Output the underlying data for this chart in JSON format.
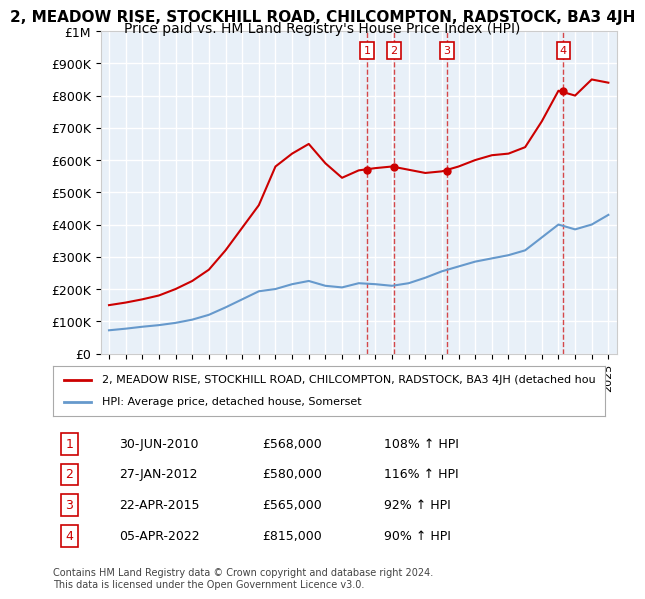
{
  "title": "2, MEADOW RISE, STOCKHILL ROAD, CHILCOMPTON, RADSTOCK, BA3 4JH",
  "subtitle": "Price paid vs. HM Land Registry's House Price Index (HPI)",
  "background_color": "#ffffff",
  "plot_bg_color": "#e8f0f8",
  "grid_color": "#ffffff",
  "ylim": [
    0,
    1000000
  ],
  "yticks": [
    0,
    100000,
    200000,
    300000,
    400000,
    500000,
    600000,
    700000,
    800000,
    900000,
    1000000
  ],
  "ytick_labels": [
    "£0",
    "£100K",
    "£200K",
    "£300K",
    "£400K",
    "£500K",
    "£600K",
    "£700K",
    "£800K",
    "£900K",
    "£1M"
  ],
  "hpi_years": [
    1995,
    1996,
    1997,
    1998,
    1999,
    2000,
    2001,
    2002,
    2003,
    2004,
    2005,
    2006,
    2007,
    2008,
    2009,
    2010,
    2011,
    2012,
    2013,
    2014,
    2015,
    2016,
    2017,
    2018,
    2019,
    2020,
    2021,
    2022,
    2023,
    2024,
    2025
  ],
  "hpi_values": [
    72000,
    77000,
    83000,
    88000,
    95000,
    105000,
    120000,
    143000,
    168000,
    193000,
    200000,
    215000,
    225000,
    210000,
    205000,
    218000,
    215000,
    210000,
    218000,
    235000,
    255000,
    270000,
    285000,
    295000,
    305000,
    320000,
    360000,
    400000,
    385000,
    400000,
    430000
  ],
  "prop_years": [
    1995,
    1996,
    1997,
    1998,
    1999,
    2000,
    2001,
    2002,
    2003,
    2004,
    2005,
    2006,
    2007,
    2008,
    2009,
    2010,
    2011,
    2012,
    2013,
    2014,
    2015,
    2016,
    2017,
    2018,
    2019,
    2020,
    2021,
    2022,
    2023,
    2024,
    2025
  ],
  "prop_values": [
    150000,
    158000,
    168000,
    180000,
    200000,
    225000,
    260000,
    320000,
    390000,
    460000,
    580000,
    620000,
    650000,
    590000,
    545000,
    568000,
    575000,
    580000,
    570000,
    560000,
    565000,
    580000,
    600000,
    615000,
    620000,
    640000,
    720000,
    815000,
    800000,
    850000,
    840000
  ],
  "sale_points": [
    {
      "num": 1,
      "year": 2010.5,
      "price": 568000,
      "date": "30-JUN-2010",
      "pct": "108%",
      "dir": "↑"
    },
    {
      "num": 2,
      "year": 2012.1,
      "price": 580000,
      "date": "27-JAN-2012",
      "pct": "116%",
      "dir": "↑"
    },
    {
      "num": 3,
      "year": 2015.3,
      "price": 565000,
      "date": "22-APR-2015",
      "pct": "92%",
      "dir": "↑"
    },
    {
      "num": 4,
      "year": 2022.3,
      "price": 815000,
      "date": "05-APR-2022",
      "pct": "90%",
      "dir": "↑"
    }
  ],
  "legend_prop_label": "2, MEADOW RISE, STOCKHILL ROAD, CHILCOMPTON, RADSTOCK, BA3 4JH (detached hou",
  "legend_hpi_label": "HPI: Average price, detached house, Somerset",
  "footer": "Contains HM Land Registry data © Crown copyright and database right 2024.\nThis data is licensed under the Open Government Licence v3.0.",
  "prop_color": "#cc0000",
  "hpi_color": "#6699cc",
  "vline_color": "#cc0000",
  "box_color": "#cc0000",
  "title_fontsize": 11,
  "subtitle_fontsize": 10,
  "tick_fontsize": 9,
  "legend_fontsize": 8,
  "footer_fontsize": 7,
  "table_fontsize": 9
}
